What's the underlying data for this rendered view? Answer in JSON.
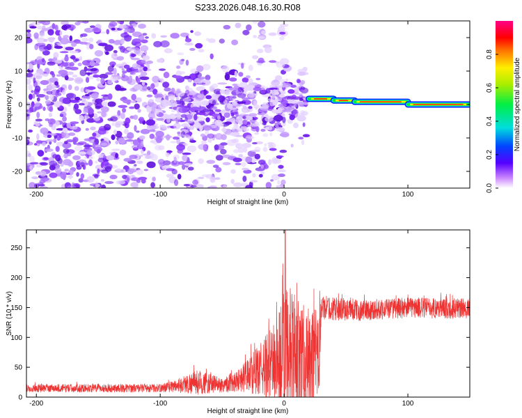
{
  "title": "S233.2026.048.16.30.R08",
  "chart_data": [
    {
      "type": "heatmap",
      "panel": "top",
      "xlabel": "Height of straight line (km)",
      "ylabel": "Frequency (Hz)",
      "xlim": [
        -208,
        150
      ],
      "ylim": [
        -25,
        25
      ],
      "xticks": [
        -200,
        -100,
        0,
        100
      ],
      "yticks": [
        20,
        10,
        0,
        -10,
        -20
      ],
      "features": {
        "noise_region_x": [
          -208,
          18
        ],
        "noise_max_height_x": 15,
        "carrier_start_x": 20,
        "carrier_segments": [
          {
            "x": [
              20,
              40
            ],
            "freq": 1.7
          },
          {
            "x": [
              40,
              57
            ],
            "freq": 1.2
          },
          {
            "x": [
              57,
              100
            ],
            "freq": 0.8
          },
          {
            "x": [
              100,
              150
            ],
            "freq": 0.0
          }
        ]
      },
      "colorbar": {
        "label": "Normalized spectral amplitude",
        "range": [
          0.0,
          1.0
        ],
        "ticks": [
          0.0,
          0.2,
          0.4,
          0.6,
          0.8
        ]
      }
    },
    {
      "type": "line",
      "panel": "bottom",
      "xlabel": "Height of straight line (km)",
      "ylabel": "SNR (10 * v/v)",
      "xlim": [
        -208,
        150
      ],
      "ylim": [
        0,
        280
      ],
      "xticks": [
        -200,
        -100,
        0,
        100
      ],
      "yticks": [
        0,
        50,
        100,
        150,
        200,
        250
      ],
      "series": [
        {
          "name": "SNR",
          "color": "#ee3333",
          "envelope": [
            {
              "x": -208,
              "mean": 15,
              "spread": 10
            },
            {
              "x": -100,
              "mean": 15,
              "spread": 10
            },
            {
              "x": -90,
              "mean": 18,
              "spread": 14
            },
            {
              "x": -70,
              "mean": 25,
              "spread": 30
            },
            {
              "x": -50,
              "mean": 20,
              "spread": 18
            },
            {
              "x": -35,
              "mean": 30,
              "spread": 30
            },
            {
              "x": -20,
              "mean": 45,
              "spread": 60
            },
            {
              "x": -5,
              "mean": 60,
              "spread": 110
            },
            {
              "x": 0,
              "mean": 70,
              "spread": 180
            },
            {
              "x": 15,
              "mean": 65,
              "spread": 130
            },
            {
              "x": 28,
              "mean": 60,
              "spread": 120
            },
            {
              "x": 30,
              "mean": 150,
              "spread": 30
            },
            {
              "x": 60,
              "mean": 145,
              "spread": 25
            },
            {
              "x": 100,
              "mean": 150,
              "spread": 25
            },
            {
              "x": 150,
              "mean": 148,
              "spread": 25
            }
          ],
          "peak": {
            "x": 1,
            "y": 280
          }
        }
      ]
    }
  ]
}
